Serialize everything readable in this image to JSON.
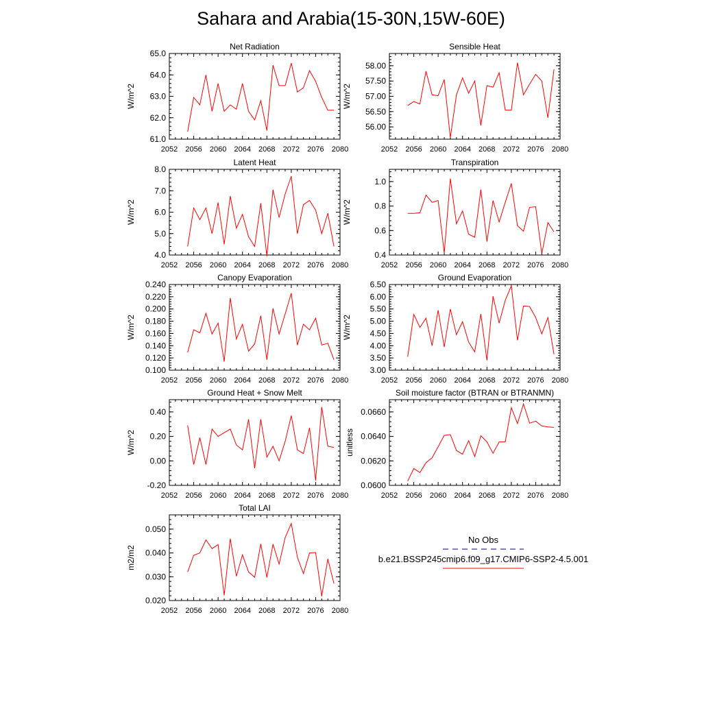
{
  "title": "Sahara and Arabia(15-30N,15W-60E)",
  "colors": {
    "model_line": "#ff0000",
    "obs_line": "#000080",
    "axis": "#000000"
  },
  "legend": {
    "obs_label": "No Obs",
    "model_label": "b.e21.BSSP245cmip6.f09_g17.CMIP6-SSP2-4.5.001"
  },
  "chart_data": [
    {
      "type": "line",
      "title": "Net Radiation",
      "ylabel": "W/m^2",
      "xlim": [
        2052,
        2080
      ],
      "ylim": [
        61.0,
        65.0
      ],
      "xticks": [
        "2052",
        "2056",
        "2060",
        "2064",
        "2068",
        "2072",
        "2076",
        "2080"
      ],
      "yticks": [
        "61.0",
        "62.0",
        "63.0",
        "64.0",
        "65.0"
      ],
      "x": [
        2055,
        2056,
        2057,
        2058,
        2059,
        2060,
        2061,
        2062,
        2063,
        2064,
        2065,
        2066,
        2067,
        2068,
        2069,
        2070,
        2071,
        2072,
        2073,
        2074,
        2075,
        2076,
        2077,
        2078,
        2079
      ],
      "series": [
        {
          "values": [
            61.35,
            62.95,
            62.6,
            64.0,
            62.3,
            63.6,
            62.3,
            62.6,
            62.4,
            63.6,
            62.3,
            61.9,
            62.8,
            61.4,
            64.45,
            63.5,
            63.5,
            64.55,
            63.2,
            63.4,
            64.2,
            63.7,
            62.95,
            62.35,
            62.35
          ]
        }
      ]
    },
    {
      "type": "line",
      "title": "Sensible Heat",
      "ylabel": "W/m^2",
      "xlim": [
        2052,
        2080
      ],
      "ylim": [
        55.6,
        58.4
      ],
      "xticks": [
        "2052",
        "2056",
        "2060",
        "2064",
        "2068",
        "2072",
        "2076",
        "2080"
      ],
      "yticks": [
        "56.00",
        "56.50",
        "57.00",
        "57.50",
        "58.00"
      ],
      "x": [
        2055,
        2056,
        2057,
        2058,
        2059,
        2060,
        2061,
        2062,
        2063,
        2064,
        2065,
        2066,
        2067,
        2068,
        2069,
        2070,
        2071,
        2072,
        2073,
        2074,
        2075,
        2076,
        2077,
        2078,
        2079
      ],
      "series": [
        {
          "values": [
            56.7,
            56.83,
            56.75,
            57.82,
            57.05,
            57.02,
            57.55,
            55.65,
            57.05,
            57.6,
            57.1,
            57.5,
            56.05,
            57.35,
            57.3,
            57.77,
            56.55,
            56.55,
            58.1,
            57.05,
            57.4,
            57.72,
            57.5,
            56.3,
            57.88
          ]
        }
      ]
    },
    {
      "type": "line",
      "title": "Latent Heat",
      "ylabel": "W/m^2",
      "xlim": [
        2052,
        2080
      ],
      "ylim": [
        4.0,
        8.0
      ],
      "xticks": [
        "2052",
        "2056",
        "2060",
        "2064",
        "2068",
        "2072",
        "2076",
        "2080"
      ],
      "yticks": [
        "4.0",
        "5.0",
        "6.0",
        "7.0",
        "8.0"
      ],
      "x": [
        2055,
        2056,
        2057,
        2058,
        2059,
        2060,
        2061,
        2062,
        2063,
        2064,
        2065,
        2066,
        2067,
        2068,
        2069,
        2070,
        2071,
        2072,
        2073,
        2074,
        2075,
        2076,
        2077,
        2078,
        2079
      ],
      "series": [
        {
          "values": [
            4.4,
            6.2,
            5.65,
            6.2,
            5.0,
            6.45,
            4.5,
            6.75,
            5.25,
            5.9,
            4.85,
            4.4,
            6.42,
            3.95,
            7.05,
            5.75,
            6.85,
            7.68,
            5.0,
            6.35,
            6.55,
            6.1,
            5.0,
            5.95,
            4.4
          ]
        }
      ]
    },
    {
      "type": "line",
      "title": "Transpiration",
      "ylabel": "W/m^2",
      "xlim": [
        2052,
        2080
      ],
      "ylim": [
        0.4,
        1.1
      ],
      "xticks": [
        "2052",
        "2056",
        "2060",
        "2064",
        "2068",
        "2072",
        "2076",
        "2080"
      ],
      "yticks": [
        "0.4",
        "0.6",
        "0.8",
        "1.0"
      ],
      "x": [
        2055,
        2056,
        2057,
        2058,
        2059,
        2060,
        2061,
        2062,
        2063,
        2064,
        2065,
        2066,
        2067,
        2068,
        2069,
        2070,
        2071,
        2072,
        2073,
        2074,
        2075,
        2076,
        2077,
        2078,
        2079
      ],
      "series": [
        {
          "values": [
            0.74,
            0.74,
            0.745,
            0.89,
            0.83,
            0.845,
            0.415,
            1.025,
            0.655,
            0.76,
            0.57,
            0.545,
            0.935,
            0.51,
            0.845,
            0.67,
            0.83,
            0.985,
            0.64,
            0.595,
            0.79,
            0.795,
            0.41,
            0.665,
            0.59
          ]
        }
      ]
    },
    {
      "type": "line",
      "title": "Canopy Evaporation",
      "ylabel": "W/m^2",
      "xlim": [
        2052,
        2080
      ],
      "ylim": [
        0.1,
        0.24
      ],
      "xticks": [
        "2052",
        "2056",
        "2060",
        "2064",
        "2068",
        "2072",
        "2076",
        "2080"
      ],
      "yticks": [
        "0.100",
        "0.120",
        "0.140",
        "0.160",
        "0.180",
        "0.200",
        "0.220",
        "0.240"
      ],
      "x": [
        2055,
        2056,
        2057,
        2058,
        2059,
        2060,
        2061,
        2062,
        2063,
        2064,
        2065,
        2066,
        2067,
        2068,
        2069,
        2070,
        2071,
        2072,
        2073,
        2074,
        2075,
        2076,
        2077,
        2078,
        2079
      ],
      "series": [
        {
          "values": [
            0.129,
            0.166,
            0.161,
            0.193,
            0.159,
            0.177,
            0.114,
            0.218,
            0.151,
            0.175,
            0.131,
            0.143,
            0.189,
            0.117,
            0.201,
            0.159,
            0.192,
            0.226,
            0.141,
            0.175,
            0.166,
            0.185,
            0.141,
            0.144,
            0.117
          ]
        }
      ]
    },
    {
      "type": "line",
      "title": "Ground Evaporation",
      "ylabel": "W/m^2",
      "xlim": [
        2052,
        2080
      ],
      "ylim": [
        3.0,
        6.5
      ],
      "xticks": [
        "2052",
        "2056",
        "2060",
        "2064",
        "2068",
        "2072",
        "2076",
        "2080"
      ],
      "yticks": [
        "3.00",
        "3.50",
        "4.00",
        "4.50",
        "5.00",
        "5.50",
        "6.00",
        "6.50"
      ],
      "x": [
        2055,
        2056,
        2057,
        2058,
        2059,
        2060,
        2061,
        2062,
        2063,
        2064,
        2065,
        2066,
        2067,
        2068,
        2069,
        2070,
        2071,
        2072,
        2073,
        2074,
        2075,
        2076,
        2077,
        2078,
        2079
      ],
      "series": [
        {
          "values": [
            3.55,
            5.28,
            4.75,
            5.12,
            4.0,
            5.45,
            3.95,
            5.5,
            4.45,
            4.98,
            4.15,
            3.75,
            5.3,
            3.4,
            6.02,
            4.92,
            5.85,
            6.45,
            4.22,
            5.62,
            5.6,
            5.15,
            4.48,
            5.15,
            3.65
          ]
        }
      ]
    },
    {
      "type": "line",
      "title": "Ground Heat + Snow Melt",
      "ylabel": "W/m^2",
      "xlim": [
        2052,
        2080
      ],
      "ylim": [
        -0.2,
        0.5
      ],
      "xticks": [
        "2052",
        "2056",
        "2060",
        "2064",
        "2068",
        "2072",
        "2076",
        "2080"
      ],
      "yticks": [
        "-0.20",
        "0.00",
        "0.20",
        "0.40"
      ],
      "x": [
        2055,
        2056,
        2057,
        2058,
        2059,
        2060,
        2061,
        2062,
        2063,
        2064,
        2065,
        2066,
        2067,
        2068,
        2069,
        2070,
        2071,
        2072,
        2073,
        2074,
        2075,
        2076,
        2077,
        2078,
        2079
      ],
      "series": [
        {
          "values": [
            0.29,
            -0.03,
            0.19,
            -0.03,
            0.26,
            0.2,
            0.23,
            0.26,
            0.13,
            0.09,
            0.34,
            -0.06,
            0.34,
            0.03,
            0.12,
            0.0,
            0.16,
            0.37,
            0.09,
            0.06,
            0.27,
            -0.16,
            0.44,
            0.12,
            0.11
          ]
        }
      ]
    },
    {
      "type": "line",
      "title": "Soil moisture factor (BTRAN or BTRANMN)",
      "ylabel": "unitless",
      "xlim": [
        2052,
        2080
      ],
      "ylim": [
        0.06,
        0.067
      ],
      "xticks": [
        "2052",
        "2056",
        "2060",
        "2064",
        "2068",
        "2072",
        "2076",
        "2080"
      ],
      "yticks": [
        "0.0600",
        "0.0620",
        "0.0640",
        "0.0660"
      ],
      "x": [
        2055,
        2056,
        2057,
        2058,
        2059,
        2060,
        2061,
        2062,
        2063,
        2064,
        2065,
        2066,
        2067,
        2068,
        2069,
        2070,
        2071,
        2072,
        2073,
        2074,
        2075,
        2076,
        2077,
        2078,
        2079
      ],
      "series": [
        {
          "values": [
            0.06035,
            0.06138,
            0.06105,
            0.06185,
            0.06225,
            0.06315,
            0.06408,
            0.06415,
            0.06285,
            0.06255,
            0.06365,
            0.06235,
            0.06405,
            0.06355,
            0.06262,
            0.06355,
            0.06355,
            0.06635,
            0.06505,
            0.06665,
            0.06508,
            0.06525,
            0.06485,
            0.06477,
            0.06474
          ]
        }
      ]
    },
    {
      "type": "line",
      "title": "Total LAI",
      "ylabel": "m2/m2",
      "xlim": [
        2052,
        2080
      ],
      "ylim": [
        0.02,
        0.056
      ],
      "xticks": [
        "2052",
        "2056",
        "2060",
        "2064",
        "2068",
        "2072",
        "2076",
        "2080"
      ],
      "yticks": [
        "0.020",
        "0.030",
        "0.040",
        "0.050"
      ],
      "x": [
        2055,
        2056,
        2057,
        2058,
        2059,
        2060,
        2061,
        2062,
        2063,
        2064,
        2065,
        2066,
        2067,
        2068,
        2069,
        2070,
        2071,
        2072,
        2073,
        2074,
        2075,
        2076,
        2077,
        2078,
        2079
      ],
      "series": [
        {
          "values": [
            0.032,
            0.039,
            0.04,
            0.0455,
            0.0418,
            0.0435,
            0.0222,
            0.046,
            0.0302,
            0.0392,
            0.032,
            0.0298,
            0.0438,
            0.0297,
            0.0437,
            0.0353,
            0.0465,
            0.0524,
            0.0382,
            0.0313,
            0.04,
            0.0402,
            0.0218,
            0.0375,
            0.0271
          ]
        }
      ]
    }
  ]
}
